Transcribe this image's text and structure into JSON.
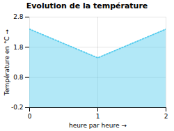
{
  "chart_data": {
    "type": "area",
    "title": "Evolution de la température",
    "xlabel": "heure par heure",
    "ylabel": "Température en °C",
    "x": [
      0,
      1,
      2
    ],
    "values": [
      2.4,
      1.45,
      2.4
    ],
    "color": "#55ccee",
    "line_style": "dotted",
    "xlim": [
      0,
      2
    ],
    "ylim": [
      -0.2,
      2.8
    ],
    "xticks": [
      0,
      1,
      2
    ],
    "yticks": [
      -0.2,
      0.8,
      1.8,
      2.8
    ],
    "grid": true
  }
}
